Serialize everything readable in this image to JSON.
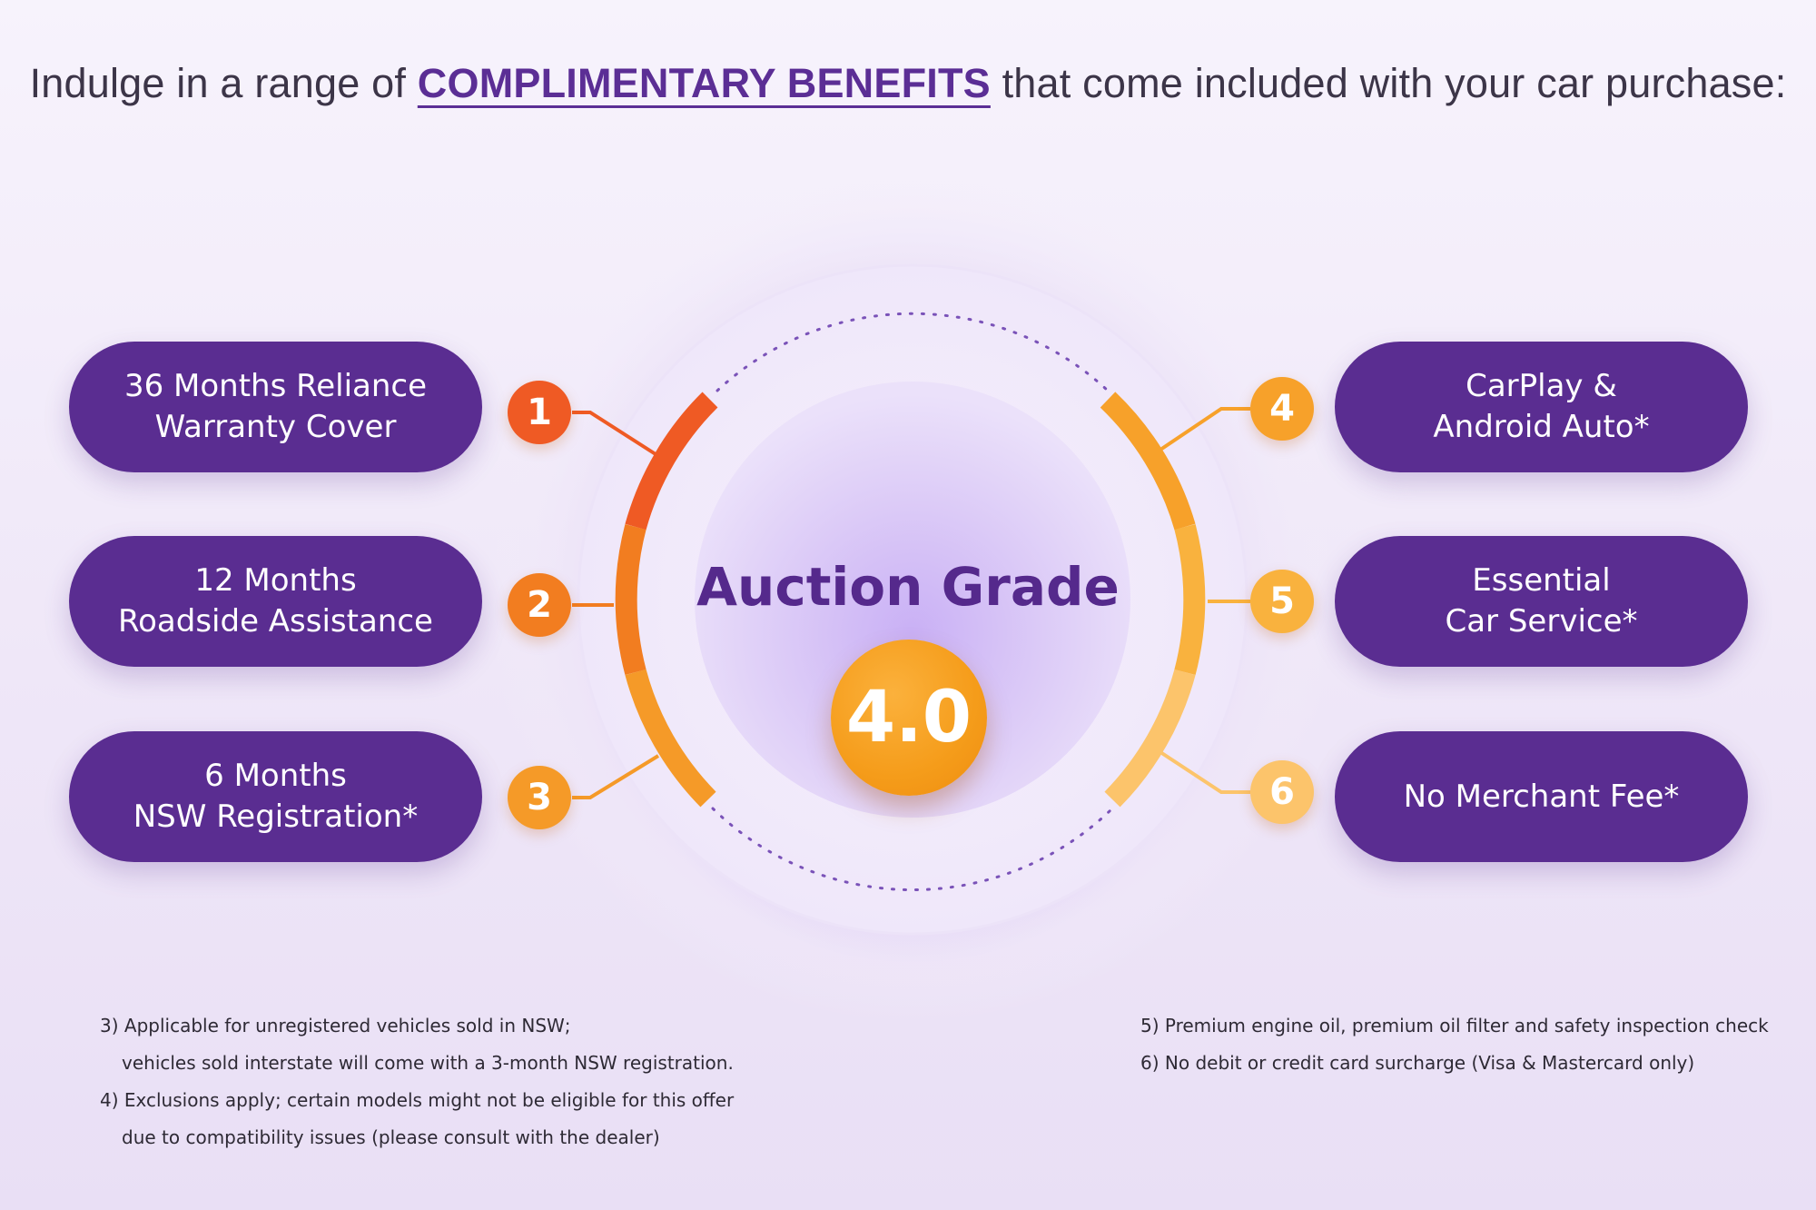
{
  "headline": {
    "prefix": "Indulge in a range of ",
    "highlight": "COMPLIMENTARY BENEFITS",
    "suffix": " that come included with your car purchase:"
  },
  "center": {
    "title": "Auction Grade",
    "grade": "4.0"
  },
  "benefits": [
    {
      "number": "1",
      "line1": "36 Months Reliance",
      "line2": "Warranty Cover",
      "color": "#ef5a24"
    },
    {
      "number": "2",
      "line1": "12 Months",
      "line2": "Roadside Assistance",
      "color": "#f27d20"
    },
    {
      "number": "3",
      "line1": "6 Months",
      "line2": "NSW Registration*",
      "color": "#f59a28"
    },
    {
      "number": "4",
      "line1": "CarPlay &",
      "line2": "Android Auto*",
      "color": "#f7a12a"
    },
    {
      "number": "5",
      "line1": "Essential",
      "line2": "Car Service*",
      "color": "#f9b23e"
    },
    {
      "number": "6",
      "line1": "No Merchant Fee*",
      "line2": "",
      "color": "#fcc46b"
    }
  ],
  "footnotes": {
    "left": [
      {
        "line1": "3) Applicable for unregistered vehicles sold in NSW;",
        "line2": "vehicles sold interstate will come with a 3-month NSW registration."
      },
      {
        "line1": "4) Exclusions apply; certain models might not be eligible for this offer",
        "line2": "due to compatibility issues (please consult with the dealer)"
      }
    ],
    "right": [
      {
        "line1": "5) Premium engine oil, premium oil filter and safety inspection check"
      },
      {
        "line1": "6) No debit or credit card surcharge (Visa & Mastercard only)"
      }
    ]
  },
  "colors": {
    "pill": "#5a2d91",
    "accent_text": "#55298c",
    "grade_badge": "#f59c1a"
  }
}
